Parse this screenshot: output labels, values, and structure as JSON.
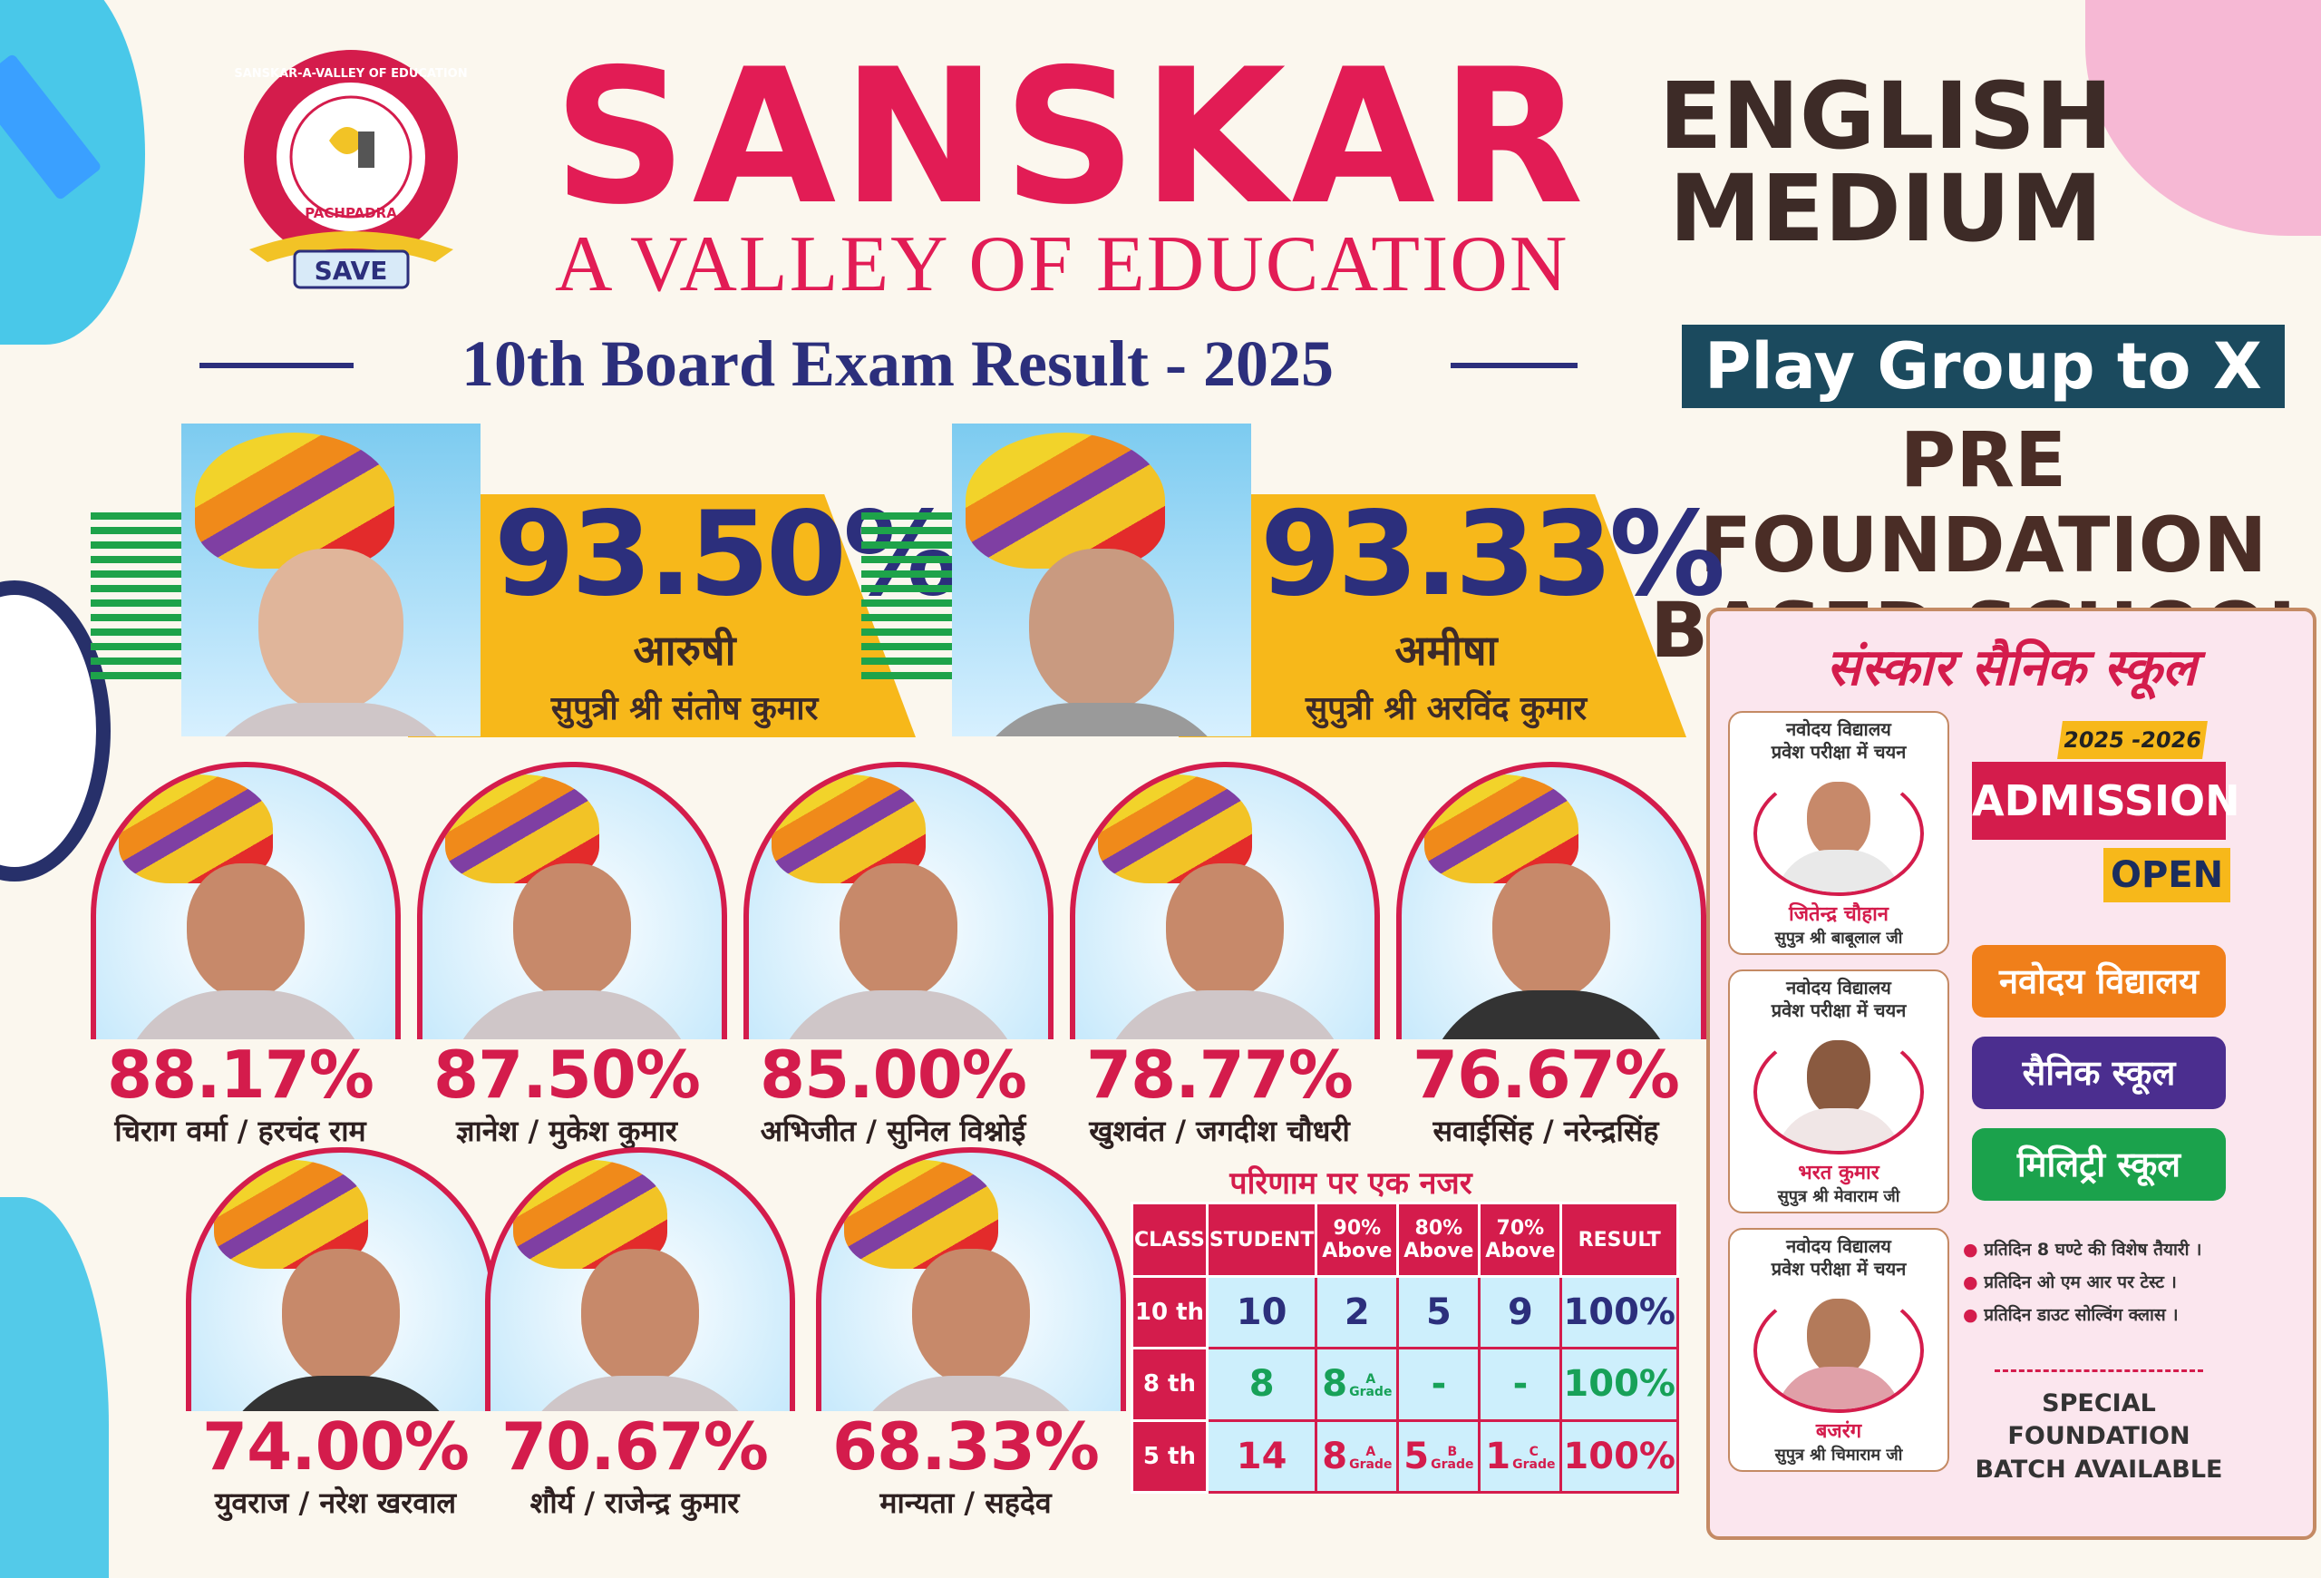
{
  "school": {
    "name": "SANSKAR",
    "tagline": "A VALLEY OF EDUCATION",
    "logo_ring": "SANSKAR-A-VALLEY OF EDUCATION",
    "logo_place": "PACHPADRA",
    "logo_ribbon": "SAVE",
    "medium_line1": "ENGLISH",
    "medium_line2": "MEDIUM",
    "playgroup": "Play Group to X",
    "pre_line1": "PRE FOUNDATION",
    "pre_line2": "BASED SCHOOL"
  },
  "result_title": "10th Board Exam Result - 2025",
  "toppers": [
    {
      "percent": "93.50%",
      "name": "आरुषी",
      "parent": "सुपुत्री श्री संतोष कुमार"
    },
    {
      "percent": "93.33%",
      "name": "अमीषा",
      "parent": "सुपुत्री श्री अरविंद कुमार"
    }
  ],
  "students_row1": [
    {
      "percent": "88.17%",
      "name": "चिराग वर्मा / हरचंद राम"
    },
    {
      "percent": "87.50%",
      "name": "ज्ञानेश / मुकेश कुमार"
    },
    {
      "percent": "85.00%",
      "name": "अभिजीत / सुनिल विश्नोई"
    },
    {
      "percent": "78.77%",
      "name": "खुशवंत / जगदीश चौधरी"
    },
    {
      "percent": "76.67%",
      "name": "सवाईसिंह / नरेन्द्रसिंह"
    }
  ],
  "students_row2": [
    {
      "percent": "74.00%",
      "name": "युवराज / नरेश खरवाल"
    },
    {
      "percent": "70.67%",
      "name": "शौर्य / राजेन्द्र कुमार"
    },
    {
      "percent": "68.33%",
      "name": "मान्यता / सहदेव"
    }
  ],
  "summary": {
    "title": "परिणाम पर एक नजर",
    "headers": [
      "CLASS",
      "STUDENT",
      "90% Above",
      "80% Above",
      "70% Above",
      "RESULT"
    ],
    "grade_word": "Grade",
    "rows": [
      {
        "cls": "10 th",
        "student": "10",
        "a90": "2",
        "a90g": "",
        "a80": "5",
        "a80g": "",
        "a70": "9",
        "a70g": "",
        "result": "100%"
      },
      {
        "cls": "8 th",
        "student": "8",
        "a90": "8",
        "a90g": "A",
        "a80": "-",
        "a80g": "",
        "a70": "-",
        "a70g": "",
        "result": "100%"
      },
      {
        "cls": "5 th",
        "student": "14",
        "a90": "8",
        "a90g": "A",
        "a80": "5",
        "a80g": "B",
        "a70": "1",
        "a70g": "C",
        "result": "100%"
      }
    ]
  },
  "sainik": {
    "title": "संस्कार सैनिक स्कूल",
    "box_head_line1": "नवोदय विद्यालय",
    "box_head_line2": "प्रवेश परीक्षा में चयन",
    "selected": [
      {
        "name": "जितेन्द्र चौहान",
        "parent": "सुपुत्र श्री बाबूलाल जी"
      },
      {
        "name": "भरत कुमार",
        "parent": "सुपुत्र श्री मेवाराम जी"
      },
      {
        "name": "बजरंग",
        "parent": "सुपुत्र श्री चिमाराम जी"
      }
    ],
    "admission_year": "2025 -2026",
    "admission": "ADMISSION",
    "open": "OPEN",
    "pills": [
      "नवोदय विद्यालय",
      "सैनिक स्कूल",
      "मिलिट्री स्कूल"
    ],
    "pill_colors": [
      "#f07f1a",
      "#4b2e8f",
      "#1ba24c"
    ],
    "bullets": [
      "प्रतिदिन 8 घण्टे की विशेष तैयारी ।",
      "प्रतिदिन ओ एम आर पर टेस्ट ।",
      "प्रतिदिन डाउट सोल्विंग क्लास ।"
    ],
    "special_line1": "SPECIAL FOUNDATION",
    "special_line2": "BATCH AVAILABLE"
  }
}
